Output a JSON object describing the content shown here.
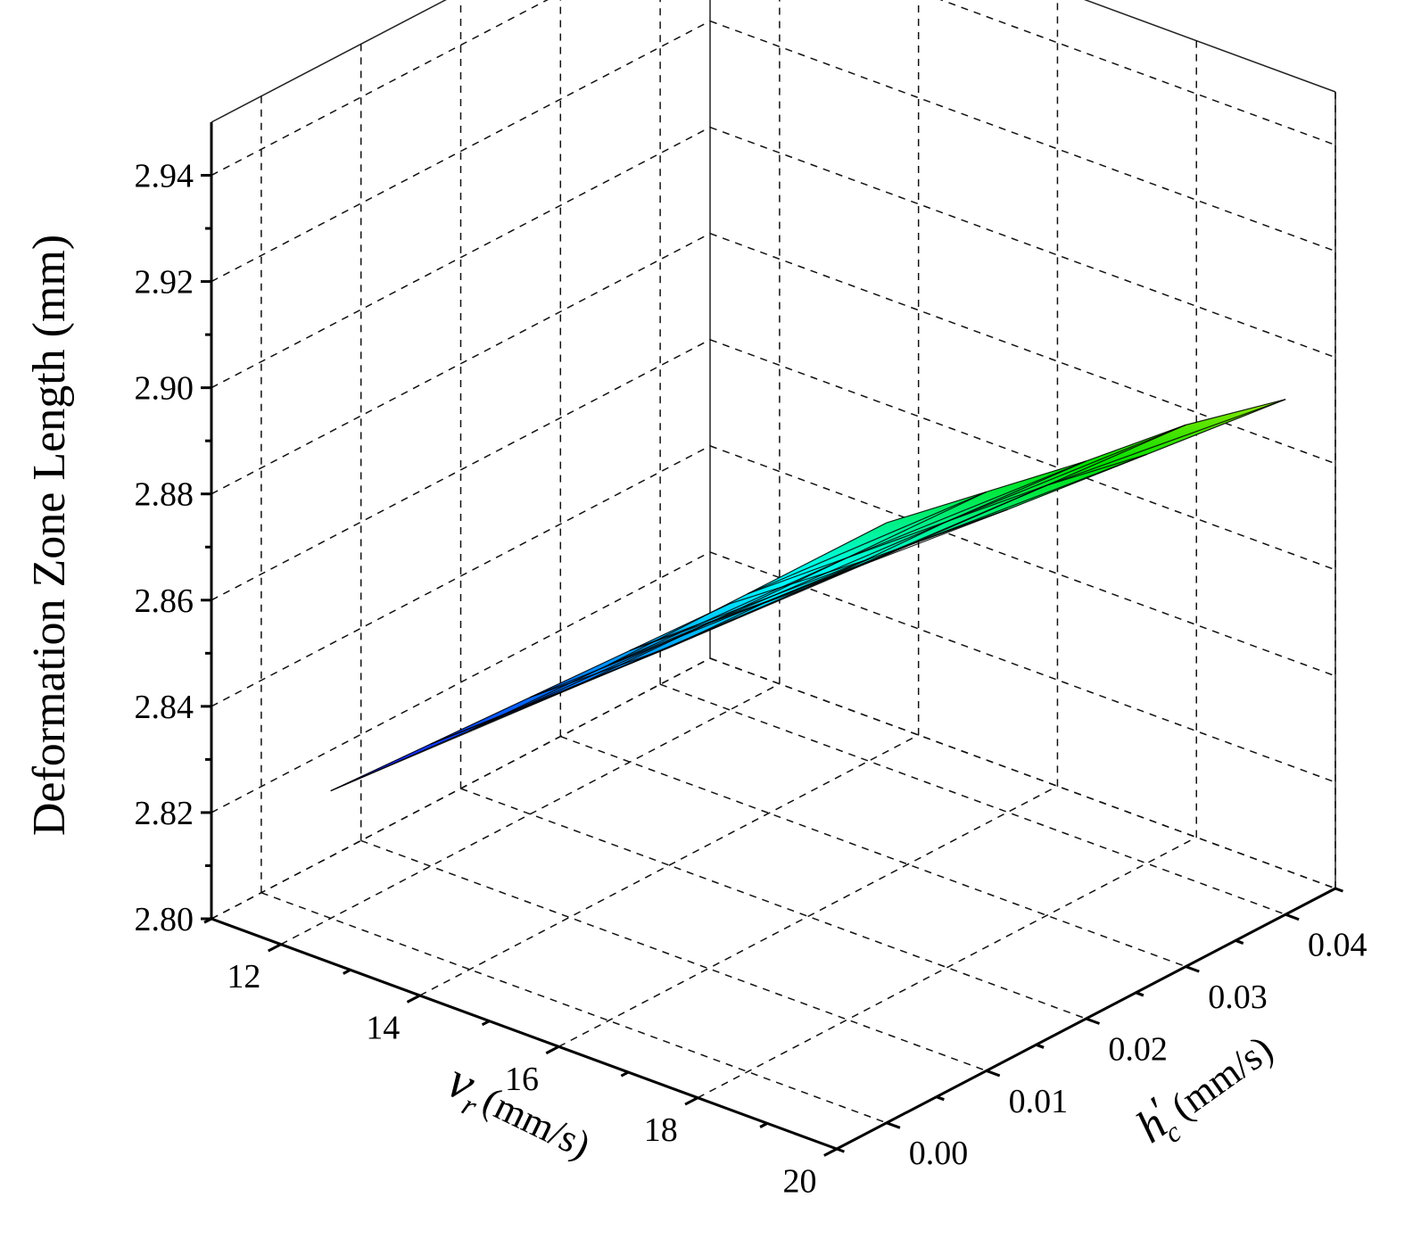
{
  "chart_data": {
    "type": "surface",
    "zlabel": "Deformation Zone Length (mm)",
    "xlabel": {
      "symbol": "v",
      "subscript": "r",
      "units": "(mm/s)"
    },
    "ylabel": {
      "symbol": "h",
      "subscript": "c",
      "prime": "′",
      "units": "(mm/s)"
    },
    "x_ticks": [
      "12",
      "14",
      "16",
      "18",
      "20"
    ],
    "y_ticks": [
      "0.00",
      "0.01",
      "0.02",
      "0.03",
      "0.04"
    ],
    "z_ticks": [
      "2.80",
      "2.82",
      "2.84",
      "2.86",
      "2.88",
      "2.90",
      "2.92",
      "2.94"
    ],
    "xlim": [
      11,
      20
    ],
    "ylim": [
      -0.005,
      0.045
    ],
    "zlim": [
      2.8,
      2.95
    ],
    "grid": true,
    "colormap": [
      "#8a00ff",
      "#2a00ff",
      "#0070ff",
      "#00ffff",
      "#00e000",
      "#ffee00",
      "#ff8800",
      "#ff0000"
    ],
    "x": [
      12,
      14,
      16,
      18,
      20
    ],
    "y": [
      0.0,
      0.01,
      0.02,
      0.03,
      0.04
    ],
    "z": [
      [
        2.824,
        2.845,
        2.867,
        2.89,
        2.913
      ],
      [
        2.823,
        2.843,
        2.865,
        2.887,
        2.909
      ],
      [
        2.822,
        2.841,
        2.862,
        2.884,
        2.905
      ],
      [
        2.821,
        2.84,
        2.86,
        2.881,
        2.902
      ],
      [
        2.82,
        2.838,
        2.857,
        2.877,
        2.897
      ]
    ]
  }
}
